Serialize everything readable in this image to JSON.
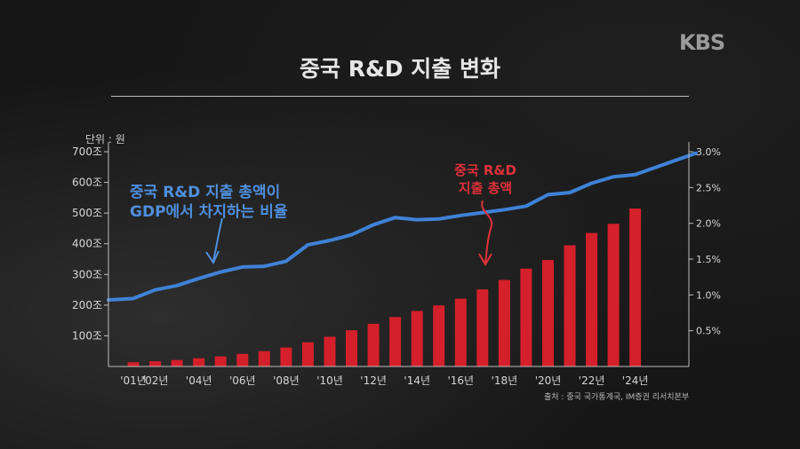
{
  "header": {
    "logo": "KBS",
    "title": "중국 R&D 지출 변화"
  },
  "unit_label": "단위 : 원",
  "source": "출처 : 중국 국가통계국, IM증권 리서치본부",
  "annotations": {
    "blue_line1": "중국 R&D 지출 총액이",
    "blue_line2": "GDP에서 차지하는 비율",
    "red_line1": "중국 R&D",
    "red_line2": "지출 총액"
  },
  "colors": {
    "bar": "#d4202a",
    "line": "#3f82d6",
    "text": "#d6d6d6"
  },
  "chart_data": {
    "type": "bar",
    "title": "중국 R&D 지출 변화",
    "x_tick_labels": [
      "'01년",
      "'02년",
      "'04년",
      "'06년",
      "'08년",
      "'10년",
      "'12년",
      "'14년",
      "'16년",
      "'18년",
      "'20년",
      "'22년",
      "'24년"
    ],
    "left_axis_ticks": [
      "100조",
      "200조",
      "300조",
      "400조",
      "500조",
      "600조",
      "700조"
    ],
    "right_axis_ticks": [
      "0.5%",
      "1.0%",
      "1.5%",
      "2.0%",
      "2.5%",
      "3.0%"
    ],
    "ylim_left": [
      0,
      700
    ],
    "ylim_right": [
      0,
      3.0
    ],
    "categories": [
      2001,
      2002,
      2003,
      2004,
      2005,
      2006,
      2007,
      2008,
      2009,
      2010,
      2011,
      2012,
      2013,
      2014,
      2015,
      2016,
      2017,
      2018,
      2019,
      2020,
      2021,
      2022,
      2023,
      2024
    ],
    "series": [
      {
        "type": "bar",
        "axis": "left",
        "values": [
          14,
          17,
          21,
          27,
          33,
          41,
          50,
          62,
          79,
          97,
          118,
          139,
          161,
          181,
          199,
          221,
          251,
          282,
          319,
          347,
          395,
          435,
          465,
          515
        ]
      },
      {
        "type": "line",
        "axis": "right",
        "values": [
          0.95,
          1.07,
          1.13,
          1.23,
          1.32,
          1.39,
          1.4,
          1.47,
          1.7,
          1.76,
          1.84,
          1.98,
          2.08,
          2.05,
          2.06,
          2.11,
          2.15,
          2.19,
          2.24,
          2.4,
          2.43,
          2.56,
          2.65,
          2.68
        ]
      }
    ]
  }
}
